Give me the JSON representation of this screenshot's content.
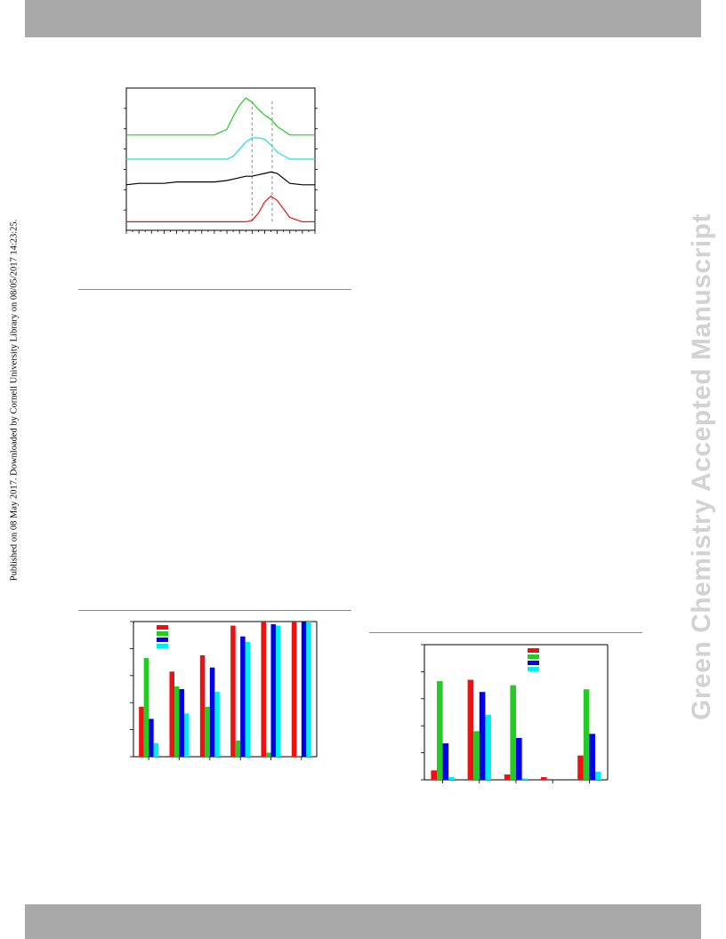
{
  "page": {
    "published_note": "Published on 08 May 2017. Downloaded by Cornell University Library on 08/05/2017 14:23:25.",
    "watermark": "Green Chemistry Accepted Manuscript"
  },
  "chart_data": [
    {
      "type": "line",
      "title": "",
      "xlabel": "",
      "ylabel": "",
      "x": [
        0,
        2,
        4,
        6,
        8,
        10,
        12,
        14,
        16,
        17,
        18,
        19,
        20,
        21,
        22,
        23,
        24,
        26,
        28,
        30
      ],
      "xlim": [
        0,
        30
      ],
      "ylim": [
        0,
        1
      ],
      "grid": false,
      "reference_lines_x": [
        20,
        23.2
      ],
      "series": [
        {
          "color": "#22cc22",
          "values": [
            0.67,
            0.67,
            0.67,
            0.67,
            0.67,
            0.67,
            0.67,
            0.67,
            0.71,
            0.8,
            0.88,
            0.93,
            0.9,
            0.85,
            0.81,
            0.78,
            0.73,
            0.67,
            0.67,
            0.67
          ]
        },
        {
          "color": "#22dddd",
          "values": [
            0.5,
            0.5,
            0.5,
            0.5,
            0.5,
            0.5,
            0.5,
            0.5,
            0.5,
            0.52,
            0.57,
            0.62,
            0.65,
            0.65,
            0.64,
            0.6,
            0.55,
            0.5,
            0.5,
            0.5
          ]
        },
        {
          "color": "#000000",
          "values": [
            0.32,
            0.33,
            0.33,
            0.33,
            0.34,
            0.34,
            0.34,
            0.34,
            0.35,
            0.36,
            0.37,
            0.38,
            0.38,
            0.39,
            0.4,
            0.41,
            0.4,
            0.33,
            0.32,
            0.32
          ]
        },
        {
          "color": "#ee1111",
          "values": [
            0.06,
            0.06,
            0.06,
            0.06,
            0.06,
            0.06,
            0.06,
            0.06,
            0.06,
            0.06,
            0.06,
            0.06,
            0.07,
            0.12,
            0.2,
            0.24,
            0.21,
            0.09,
            0.06,
            0.06
          ]
        }
      ]
    },
    {
      "type": "bar",
      "title": "",
      "xlabel": "",
      "ylabel": "",
      "ylim": [
        0,
        100
      ],
      "grid": false,
      "legend": "top-left",
      "categories": [
        "",
        "",
        "",
        "",
        "",
        ""
      ],
      "series": [
        {
          "color": "#ee1111",
          "values": [
            37,
            63,
            75,
            97,
            100,
            100
          ]
        },
        {
          "color": "#22cc22",
          "values": [
            73,
            52,
            37,
            12,
            3,
            0
          ]
        },
        {
          "color": "#0000ee",
          "values": [
            28,
            50,
            66,
            89,
            98,
            100
          ]
        },
        {
          "color": "#00eeee",
          "values": [
            10,
            32,
            48,
            85,
            97,
            100
          ]
        }
      ]
    },
    {
      "type": "bar",
      "title": "",
      "xlabel": "",
      "ylabel": "",
      "ylim": [
        0,
        100
      ],
      "grid": false,
      "legend": "top-right",
      "categories": [
        "",
        "",
        "",
        "",
        ""
      ],
      "series": [
        {
          "color": "#ee1111",
          "values": [
            7,
            74,
            4,
            2,
            18
          ]
        },
        {
          "color": "#22cc22",
          "values": [
            73,
            36,
            70,
            0,
            67
          ]
        },
        {
          "color": "#0000ee",
          "values": [
            27,
            65,
            31,
            0,
            34
          ]
        },
        {
          "color": "#00eeee",
          "values": [
            2,
            48,
            1,
            0,
            6
          ]
        }
      ]
    }
  ]
}
